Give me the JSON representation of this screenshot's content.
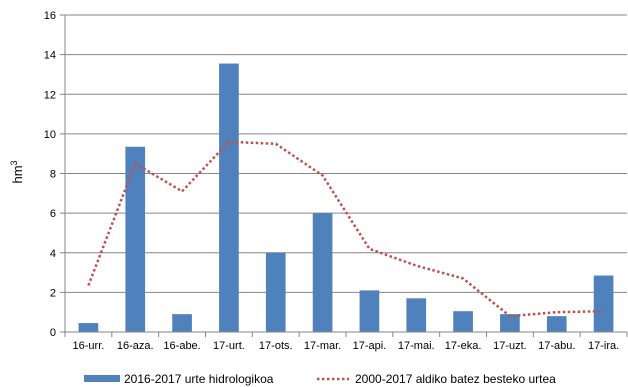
{
  "chart_data": {
    "type": "bar",
    "ylabel": "hm",
    "ylabel_superscript": "3",
    "ylim": [
      0,
      16
    ],
    "yticks": [
      0,
      2,
      4,
      6,
      8,
      10,
      12,
      14,
      16
    ],
    "grid": true,
    "legend_position": "bottom",
    "categories": [
      "16-urr.",
      "16-aza.",
      "16-abe.",
      "17-urt.",
      "17-ots.",
      "17-mar.",
      "17-api.",
      "17-mai.",
      "17-eka.",
      "17-uzt.",
      "17-abu.",
      "17-ira."
    ],
    "series": [
      {
        "name": "2016-2017 urte hidrologikoa",
        "type": "bar",
        "color": "#4f81bd",
        "values": [
          0.45,
          9.35,
          0.9,
          13.55,
          4.0,
          6.0,
          2.1,
          1.7,
          1.05,
          0.9,
          0.8,
          2.85
        ]
      },
      {
        "name": "2000-2017 aldiko batez besteko urtea",
        "type": "line",
        "style": "dotted",
        "color": "#c0504d",
        "values": [
          2.35,
          8.5,
          7.1,
          9.6,
          9.5,
          7.9,
          4.2,
          3.35,
          2.7,
          0.8,
          1.0,
          1.05
        ]
      }
    ]
  }
}
